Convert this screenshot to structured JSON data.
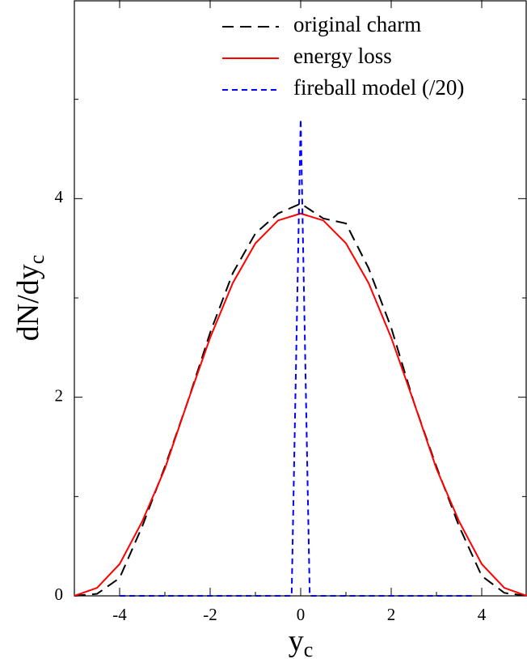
{
  "chart_data": {
    "type": "line",
    "xlabel": {
      "text": "y",
      "subscript": "c"
    },
    "ylabel": {
      "text": "dN/dy",
      "subscript": "c"
    },
    "xlim": [
      -5,
      5
    ],
    "ylim": [
      0,
      6
    ],
    "xticks": [
      -4,
      -2,
      0,
      2,
      4
    ],
    "yticks": [
      0,
      2,
      4
    ],
    "xminor_ticks": [
      -3,
      -1,
      1,
      3
    ],
    "yminor_ticks": [
      1,
      3,
      5
    ],
    "legend": "upper right",
    "series": [
      {
        "name": "original charm",
        "color": "#000000",
        "dash": "14 8",
        "x": [
          -5,
          -4.5,
          -4,
          -3.5,
          -3,
          -2.5,
          -2,
          -1.5,
          -1,
          -0.5,
          0,
          0.5,
          1,
          1.5,
          2,
          2.5,
          3,
          3.5,
          4,
          4.5,
          5
        ],
        "values": [
          0,
          0.02,
          0.18,
          0.7,
          1.3,
          1.95,
          2.65,
          3.25,
          3.65,
          3.85,
          3.95,
          3.8,
          3.75,
          3.3,
          2.7,
          1.95,
          1.3,
          0.7,
          0.2,
          0.03,
          0
        ]
      },
      {
        "name": "energy loss",
        "color": "#ff0000",
        "dash": "none",
        "x": [
          -5,
          -4.5,
          -4,
          -3.5,
          -3,
          -2.5,
          -2,
          -1.5,
          -1,
          -0.5,
          0,
          0.5,
          1,
          1.5,
          2,
          2.5,
          3,
          3.5,
          4,
          4.5,
          5
        ],
        "values": [
          0,
          0.08,
          0.32,
          0.75,
          1.28,
          1.95,
          2.6,
          3.15,
          3.55,
          3.78,
          3.85,
          3.78,
          3.55,
          3.15,
          2.6,
          1.95,
          1.28,
          0.75,
          0.32,
          0.08,
          0
        ]
      },
      {
        "name": "fireball model (/20)",
        "color": "#0000ff",
        "dash": "7 5",
        "x": [
          -4,
          -0.2,
          0,
          0.2,
          3.8
        ],
        "values": [
          0,
          0,
          4.8,
          0,
          0
        ]
      }
    ]
  }
}
